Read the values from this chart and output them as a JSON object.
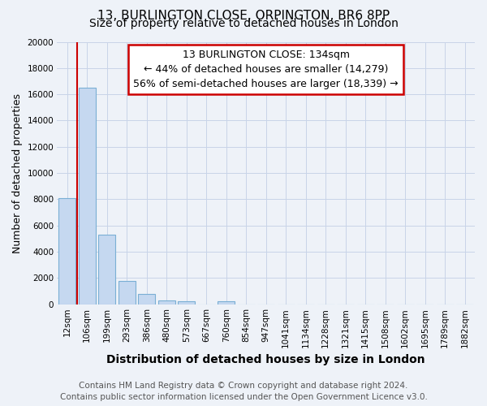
{
  "title": "13, BURLINGTON CLOSE, ORPINGTON, BR6 8PP",
  "subtitle": "Size of property relative to detached houses in London",
  "xlabel": "Distribution of detached houses by size in London",
  "ylabel": "Number of detached properties",
  "categories": [
    "12sqm",
    "106sqm",
    "199sqm",
    "293sqm",
    "386sqm",
    "480sqm",
    "573sqm",
    "667sqm",
    "760sqm",
    "854sqm",
    "947sqm",
    "1041sqm",
    "1134sqm",
    "1228sqm",
    "1321sqm",
    "1415sqm",
    "1508sqm",
    "1602sqm",
    "1695sqm",
    "1789sqm",
    "1882sqm"
  ],
  "values": [
    8100,
    16500,
    5300,
    1750,
    800,
    300,
    250,
    0,
    250,
    0,
    0,
    0,
    0,
    0,
    0,
    0,
    0,
    0,
    0,
    0,
    0
  ],
  "bar_color": "#c5d8f0",
  "bar_edge_color": "#7aafd4",
  "red_line_x": 0.5,
  "annotation_title": "13 BURLINGTON CLOSE: 134sqm",
  "annotation_line1": "← 44% of detached houses are smaller (14,279)",
  "annotation_line2": "56% of semi-detached houses are larger (18,339) →",
  "annotation_box_color": "#ffffff",
  "annotation_box_edge_color": "#cc0000",
  "red_line_color": "#cc0000",
  "ylim": [
    0,
    20000
  ],
  "yticks": [
    0,
    2000,
    4000,
    6000,
    8000,
    10000,
    12000,
    14000,
    16000,
    18000,
    20000
  ],
  "grid_color": "#c8d4e8",
  "background_color": "#eef2f8",
  "footer_line1": "Contains HM Land Registry data © Crown copyright and database right 2024.",
  "footer_line2": "Contains public sector information licensed under the Open Government Licence v3.0.",
  "title_fontsize": 11,
  "subtitle_fontsize": 10,
  "xlabel_fontsize": 10,
  "ylabel_fontsize": 9,
  "tick_fontsize": 7.5,
  "annotation_fontsize": 9,
  "footer_fontsize": 7.5
}
